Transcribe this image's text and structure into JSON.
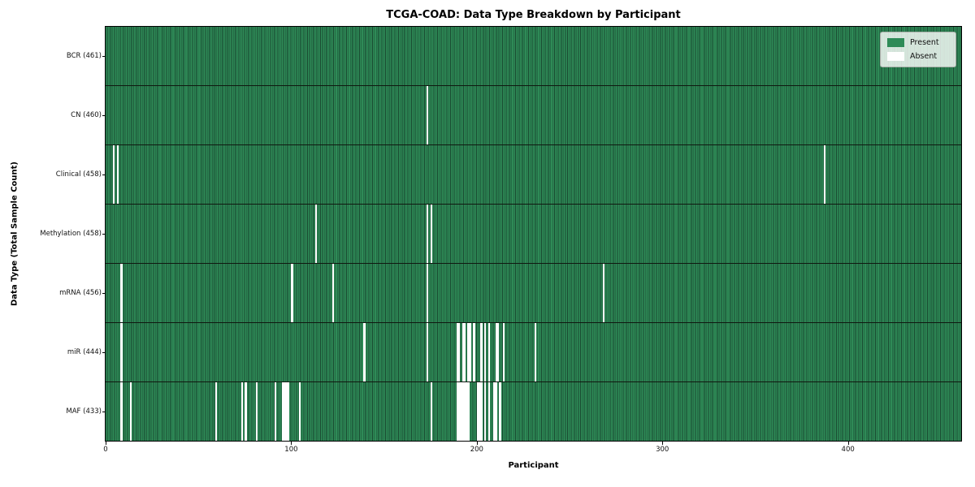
{
  "title": "TCGA-COAD: Data Type Breakdown by Participant",
  "colors": {
    "present": "#2e8b57",
    "cell_edge": "#194a31",
    "absent": "#ffffff",
    "separator": "#101810",
    "background": "#ffffff"
  },
  "chart_data": {
    "type": "heatmap",
    "title": "TCGA-COAD: Data Type Breakdown by Participant",
    "xlabel": "Participant",
    "ylabel": "Data Type (Total Sample Count)",
    "legend_labels": [
      "Present",
      "Absent"
    ],
    "legend_position": "upper right",
    "n_participants": 461,
    "x_ticks": [
      0,
      100,
      200,
      300,
      400
    ],
    "x_range": [
      0,
      461
    ],
    "cell_values": "present=1, absent=0",
    "rows": [
      {
        "label": "BCR (461)",
        "name": "BCR",
        "present_count": 461,
        "absent_participants": []
      },
      {
        "label": "CN (460)",
        "name": "CN",
        "present_count": 460,
        "absent_participants": [
          173
        ]
      },
      {
        "label": "Clinical (458)",
        "name": "Clinical",
        "present_count": 458,
        "absent_participants": [
          4,
          6,
          387
        ]
      },
      {
        "label": "Methylation (458)",
        "name": "Methylation",
        "present_count": 458,
        "absent_participants": [
          113,
          173,
          175
        ]
      },
      {
        "label": "mRNA (456)",
        "name": "mRNA",
        "present_count": 456,
        "absent_participants": [
          8,
          100,
          122,
          173,
          268
        ]
      },
      {
        "label": "miR (444)",
        "name": "miR",
        "present_count": 444,
        "absent_participants": [
          8,
          139,
          173,
          189,
          190,
          192,
          193,
          195,
          196,
          198,
          202,
          204,
          206,
          210,
          211,
          214,
          231
        ]
      },
      {
        "label": "MAF (433)",
        "name": "MAF",
        "present_count": 433,
        "absent_participants": [
          8,
          13,
          59,
          73,
          75,
          81,
          91,
          95,
          96,
          97,
          98,
          104,
          175,
          189,
          190,
          191,
          192,
          193,
          194,
          195,
          200,
          201,
          202,
          204,
          206,
          209,
          210,
          212
        ]
      }
    ]
  }
}
